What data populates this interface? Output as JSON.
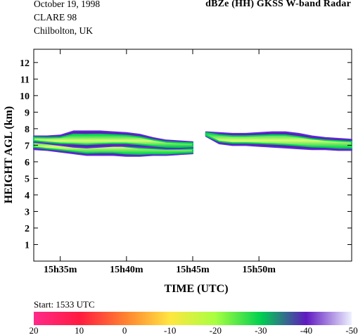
{
  "header": {
    "date": "October 19, 1998",
    "campaign": "CLARE 98",
    "site": "Chilbolton, UK",
    "product": "dBZe (HH)   GKSS  W-band Radar"
  },
  "start_note": "Start: 1533 UTC",
  "chart_data": {
    "type": "heatmap",
    "title": "dBZe (HH)   GKSS  W-band Radar",
    "xlabel": "TIME (UTC)",
    "ylabel": "HEIGHT AGL (km)",
    "xlim": [
      "15:33",
      "15:57"
    ],
    "ylim": [
      0,
      12.8
    ],
    "x_ticks": [
      {
        "time": "15:35",
        "label": "15h35m"
      },
      {
        "time": "15:40",
        "label": "15h40m"
      },
      {
        "time": "15:45",
        "label": "15h45m"
      },
      {
        "time": "15:50",
        "label": "15h50m"
      }
    ],
    "y_ticks": [
      1,
      2,
      3,
      4,
      5,
      6,
      7,
      8,
      9,
      10,
      11,
      12
    ],
    "colorbar": {
      "unit": "dBZe",
      "ticks": [
        20,
        10,
        0,
        -10,
        -20,
        -30,
        -40,
        -50
      ],
      "colors": [
        "#ff2a8a",
        "#ff1a40",
        "#ff8030",
        "#ffe640",
        "#a8ff40",
        "#00d050",
        "#6018c0",
        "#eef2ff"
      ]
    },
    "echo_layers": [
      {
        "name": "lower-band",
        "time": [
          "15:33",
          "15:34",
          "15:35",
          "15:36",
          "15:37",
          "15:38",
          "15:39",
          "15:40",
          "15:41",
          "15:42",
          "15:43",
          "15:44",
          "15:45"
        ],
        "base_km": [
          6.75,
          6.7,
          6.6,
          6.5,
          6.4,
          6.4,
          6.4,
          6.35,
          6.35,
          6.4,
          6.4,
          6.45,
          6.5
        ],
        "top_km": [
          7.45,
          7.2,
          7.2,
          7.15,
          7.1,
          7.2,
          7.2,
          7.05,
          6.95,
          6.9,
          6.85,
          6.85,
          6.85
        ],
        "peak_dbze": -10
      },
      {
        "name": "upper-band",
        "time": [
          "15:33",
          "15:34",
          "15:35",
          "15:36",
          "15:37",
          "15:38",
          "15:39",
          "15:40",
          "15:41",
          "15:42",
          "15:43",
          "15:44",
          "15:45"
        ],
        "base_km": [
          7.2,
          7.1,
          7.0,
          6.9,
          6.85,
          6.9,
          6.95,
          6.95,
          6.9,
          6.85,
          6.8,
          6.8,
          6.85
        ],
        "top_km": [
          7.55,
          7.55,
          7.6,
          7.85,
          7.85,
          7.85,
          7.8,
          7.75,
          7.65,
          7.45,
          7.3,
          7.25,
          7.2
        ],
        "peak_dbze": -15
      },
      {
        "name": "right-band",
        "time": [
          "15:46",
          "15:47",
          "15:48",
          "15:49",
          "15:50",
          "15:51",
          "15:52",
          "15:53",
          "15:54",
          "15:55",
          "15:56",
          "15:57"
        ],
        "base_km": [
          7.55,
          7.1,
          7.0,
          7.0,
          6.95,
          6.9,
          6.85,
          6.8,
          6.75,
          6.75,
          6.7,
          6.7
        ],
        "top_km": [
          7.8,
          7.75,
          7.7,
          7.7,
          7.75,
          7.8,
          7.8,
          7.7,
          7.55,
          7.45,
          7.4,
          7.35
        ],
        "peak_dbze": -18
      }
    ],
    "gap": {
      "start": "15:45",
      "end": "15:46"
    }
  }
}
